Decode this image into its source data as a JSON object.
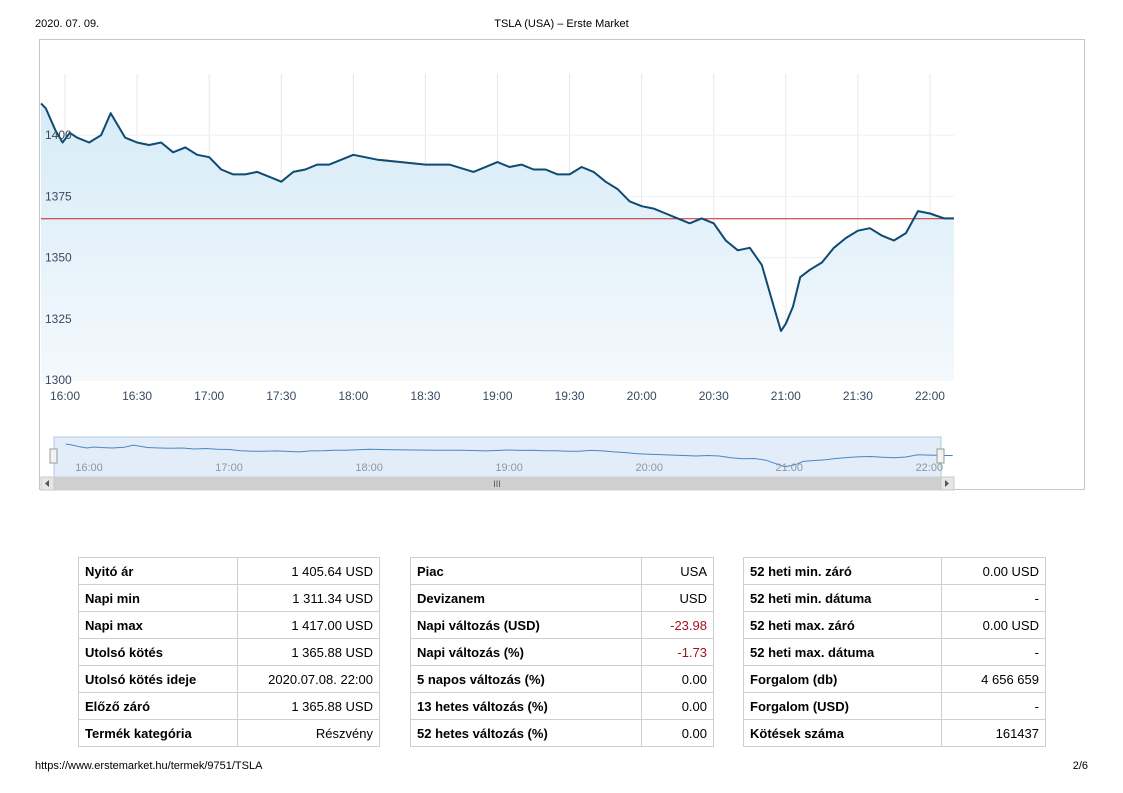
{
  "header": {
    "date": "2020. 07. 09.",
    "title": "TSLA (USA) – Erste Market"
  },
  "footer": {
    "url": "https://www.erstemarket.hu/termek/9751/TSLA",
    "page": "2/6"
  },
  "colors": {
    "line": "#0e4a72",
    "ref_line": "#c0262d",
    "fill_top": "#d6ebf7",
    "fill_bottom": "#f4f9fd",
    "grid": "#e6e6e6",
    "negative": "#a1141c"
  },
  "chart_data": {
    "type": "area",
    "ylim": [
      1300,
      1425
    ],
    "yticks": [
      "1300",
      "1325",
      "1350",
      "1375",
      "1400"
    ],
    "xrange": [
      "15:50",
      "22:10"
    ],
    "xticks": [
      "16:00",
      "16:30",
      "17:00",
      "17:30",
      "18:00",
      "18:30",
      "19:00",
      "19:30",
      "20:00",
      "20:30",
      "21:00",
      "21:30",
      "22:00"
    ],
    "reference_line": {
      "value": 1365.88
    },
    "grid": "vertical",
    "series": [
      {
        "x": [
          "15:50",
          "15:52",
          "15:56",
          "15:59",
          "16:02",
          "16:05",
          "16:10",
          "16:15",
          "16:19",
          "16:25",
          "16:30",
          "16:35",
          "16:40",
          "16:45",
          "16:50",
          "16:55",
          "17:00",
          "17:05",
          "17:10",
          "17:15",
          "17:20",
          "17:25",
          "17:30",
          "17:35",
          "17:40",
          "17:45",
          "17:50",
          "18:00",
          "18:10",
          "18:20",
          "18:30",
          "18:40",
          "18:50",
          "19:00",
          "19:05",
          "19:10",
          "19:15",
          "19:20",
          "19:25",
          "19:30",
          "19:35",
          "19:40",
          "19:45",
          "19:50",
          "19:55",
          "20:00",
          "20:05",
          "20:10",
          "20:15",
          "20:20",
          "20:25",
          "20:30",
          "20:35",
          "20:40",
          "20:45",
          "20:50",
          "20:55",
          "20:58",
          "21:00",
          "21:03",
          "21:06",
          "21:10",
          "21:15",
          "21:20",
          "21:25",
          "21:30",
          "21:35",
          "21:40",
          "21:45",
          "21:50",
          "21:55",
          "22:00",
          "22:03",
          "22:06",
          "22:10"
        ],
        "y": [
          1413,
          1411,
          1402,
          1397,
          1401,
          1399,
          1397,
          1400,
          1409,
          1399,
          1397,
          1396,
          1397,
          1393,
          1395,
          1392,
          1391,
          1386,
          1384,
          1384,
          1385,
          1383,
          1381,
          1385,
          1386,
          1388,
          1388,
          1392,
          1390,
          1389,
          1388,
          1388,
          1385,
          1389,
          1387,
          1388,
          1386,
          1386,
          1384,
          1384,
          1387,
          1385,
          1381,
          1378,
          1373,
          1371,
          1370,
          1368,
          1366,
          1364,
          1366,
          1364,
          1357,
          1353,
          1354,
          1347,
          1330,
          1320,
          1323,
          1330,
          1342,
          1345,
          1348,
          1354,
          1358,
          1361,
          1362,
          1359,
          1357,
          1360,
          1369,
          1368,
          1367,
          1366,
          1366
        ]
      }
    ],
    "navigator": {
      "xticks": [
        "16:00",
        "17:00",
        "18:00",
        "19:00",
        "20:00",
        "21:00",
        "22:00"
      ],
      "scroll_label": "III"
    }
  },
  "tables": {
    "t1": [
      {
        "label": "Nyitó ár",
        "value": "1 405.64  USD"
      },
      {
        "label": "Napi min",
        "value": "1 311.34  USD"
      },
      {
        "label": "Napi max",
        "value": "1 417.00  USD"
      },
      {
        "label": "Utolsó kötés",
        "value": "1 365.88  USD"
      },
      {
        "label": "Utolsó kötés ideje",
        "value": "2020.07.08. 22:00"
      },
      {
        "label": "Előző záró",
        "value": "1 365.88  USD"
      },
      {
        "label": "Termék kategória",
        "value": "Részvény"
      }
    ],
    "t2": [
      {
        "label": "Piac",
        "value": "USA"
      },
      {
        "label": "Devizanem",
        "value": "USD"
      },
      {
        "label": "Napi változás (USD)",
        "value": "-23.98"
      },
      {
        "label": "Napi változás (%)",
        "value": "-1.73"
      },
      {
        "label": "5 napos változás (%)",
        "value": "0.00"
      },
      {
        "label": "13 hetes változás (%)",
        "value": "0.00"
      },
      {
        "label": "52 hetes változás (%)",
        "value": "0.00"
      }
    ],
    "t3": [
      {
        "label": "52 heti min. záró",
        "value": "0.00 USD"
      },
      {
        "label": "52 heti min. dátuma",
        "value": "-"
      },
      {
        "label": "52 heti max. záró",
        "value": "0.00 USD"
      },
      {
        "label": "52 heti max. dátuma",
        "value": "-"
      },
      {
        "label": "Forgalom (db)",
        "value": "4 656 659"
      },
      {
        "label": "Forgalom (USD)",
        "value": "-"
      },
      {
        "label": "Kötések száma",
        "value": "161437"
      }
    ]
  }
}
